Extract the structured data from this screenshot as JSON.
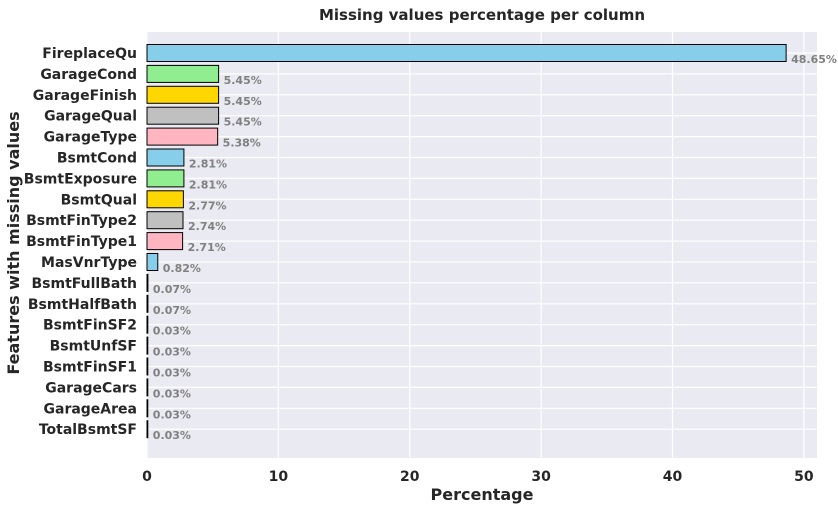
{
  "chart_data": {
    "type": "bar",
    "orientation": "horizontal",
    "title": "Missing values percentage per column",
    "xlabel": "Percentage",
    "ylabel": "Features with missing values",
    "xlim": [
      0,
      51
    ],
    "xticks": [
      0,
      10,
      20,
      30,
      40,
      50
    ],
    "grid": true,
    "categories": [
      "FireplaceQu",
      "GarageCond",
      "GarageFinish",
      "GarageQual",
      "GarageType",
      "BsmtCond",
      "BsmtExposure",
      "BsmtQual",
      "BsmtFinType2",
      "BsmtFinType1",
      "MasVnrType",
      "BsmtFullBath",
      "BsmtHalfBath",
      "BsmtFinSF2",
      "BsmtUnfSF",
      "BsmtFinSF1",
      "GarageCars",
      "GarageArea",
      "TotalBsmtSF"
    ],
    "values": [
      48.65,
      5.45,
      5.45,
      5.45,
      5.38,
      2.81,
      2.81,
      2.77,
      2.74,
      2.71,
      0.82,
      0.07,
      0.07,
      0.03,
      0.03,
      0.03,
      0.03,
      0.03,
      0.03
    ],
    "value_labels": [
      "48.65%",
      "5.45%",
      "5.45%",
      "5.45%",
      "5.38%",
      "2.81%",
      "2.81%",
      "2.77%",
      "2.74%",
      "2.71%",
      "0.82%",
      "0.07%",
      "0.07%",
      "0.03%",
      "0.03%",
      "0.03%",
      "0.03%",
      "0.03%",
      "0.03%"
    ],
    "bar_colors": [
      "#87CEEB",
      "#90EE90",
      "#FFD700",
      "#C0C0C0",
      "#FFB6C1"
    ],
    "bar_edge_color": "#000000",
    "background_color": "#EAEAF2",
    "grid_color": "#FFFFFF",
    "label_color": "#808080"
  }
}
